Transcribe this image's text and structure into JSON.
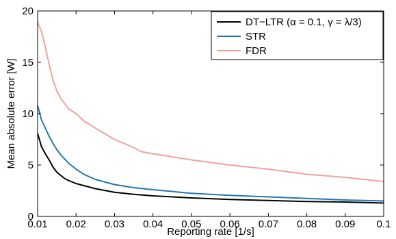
{
  "chart_data": {
    "type": "line",
    "title": "",
    "xlabel": "Reporting rate [1/s]",
    "ylabel": "Mean absolute error [W]",
    "xlim": [
      0.01,
      0.1
    ],
    "ylim": [
      0,
      20
    ],
    "xticks": [
      0.01,
      0.02,
      0.03,
      0.04,
      0.05,
      0.06,
      0.07,
      0.08,
      0.09,
      0.1
    ],
    "xtick_labels": [
      "0.01",
      "0.02",
      "0.03",
      "0.04",
      "0.05",
      "0.06",
      "0.07",
      "0.08",
      "0.09",
      "0.1"
    ],
    "yticks": [
      0,
      5,
      10,
      15,
      20
    ],
    "ytick_labels": [
      "0",
      "5",
      "10",
      "15",
      "20"
    ],
    "grid": false,
    "legend_position": "top-right",
    "series": [
      {
        "name": "DT−LTR (α = 0.1, γ = λ/3)",
        "color": "#000000",
        "x": [
          0.01,
          0.011,
          0.012,
          0.013,
          0.014,
          0.015,
          0.016,
          0.017,
          0.018,
          0.02,
          0.022,
          0.025,
          0.03,
          0.035,
          0.04,
          0.05,
          0.06,
          0.07,
          0.08,
          0.09,
          0.1
        ],
        "y": [
          8.1,
          6.8,
          6.1,
          5.5,
          4.8,
          4.3,
          4.0,
          3.7,
          3.5,
          3.2,
          3.0,
          2.7,
          2.35,
          2.15,
          2.0,
          1.8,
          1.65,
          1.55,
          1.45,
          1.4,
          1.3
        ]
      },
      {
        "name": "STR",
        "color": "#1f77b4",
        "x": [
          0.01,
          0.011,
          0.012,
          0.013,
          0.014,
          0.015,
          0.016,
          0.017,
          0.018,
          0.02,
          0.022,
          0.025,
          0.03,
          0.035,
          0.04,
          0.05,
          0.06,
          0.07,
          0.08,
          0.09,
          0.1
        ],
        "y": [
          10.8,
          9.4,
          8.6,
          7.8,
          7.1,
          6.5,
          6.0,
          5.6,
          5.2,
          4.6,
          4.1,
          3.6,
          3.1,
          2.8,
          2.6,
          2.25,
          2.05,
          1.9,
          1.75,
          1.6,
          1.5
        ]
      },
      {
        "name": "FDR",
        "color": "#f4a09c",
        "x": [
          0.01,
          0.011,
          0.012,
          0.013,
          0.014,
          0.015,
          0.016,
          0.017,
          0.018,
          0.02,
          0.022,
          0.025,
          0.03,
          0.035,
          0.037,
          0.04,
          0.05,
          0.06,
          0.07,
          0.08,
          0.09,
          0.1
        ],
        "y": [
          18.9,
          18.0,
          16.5,
          14.8,
          13.3,
          12.2,
          11.5,
          11.0,
          10.5,
          10.0,
          9.3,
          8.6,
          7.5,
          6.7,
          6.3,
          6.1,
          5.5,
          5.0,
          4.6,
          4.1,
          3.8,
          3.4
        ]
      }
    ]
  }
}
